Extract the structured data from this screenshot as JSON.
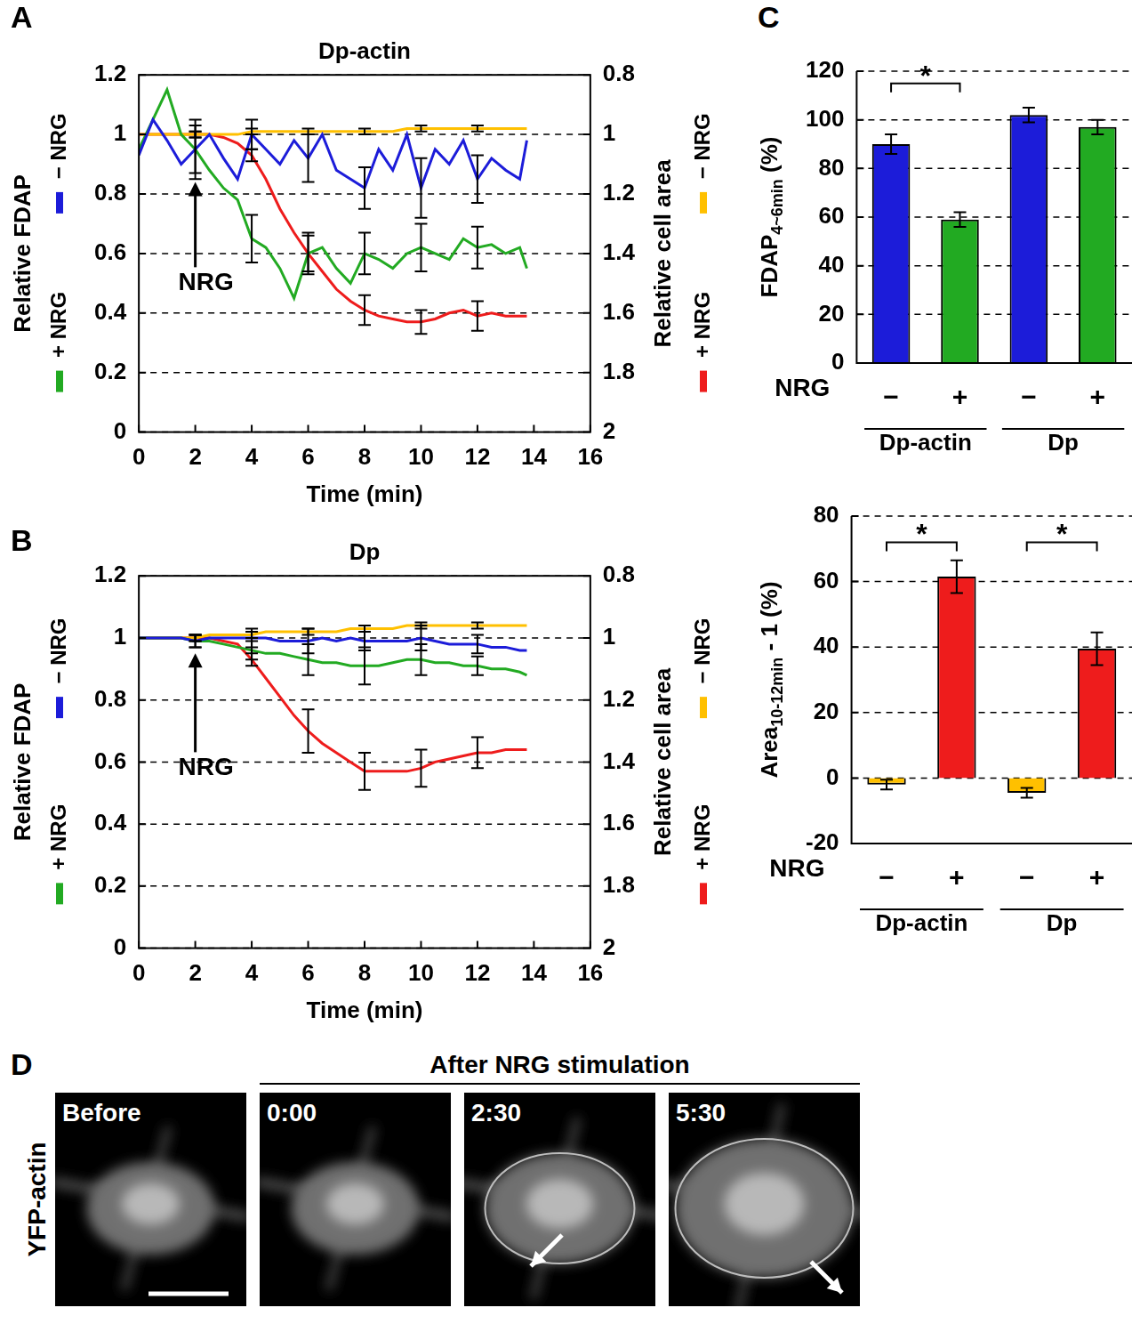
{
  "chart_data": [
    {
      "type": "line",
      "panel": "A",
      "title": "Dp-actin",
      "xlabel": "Time (min)",
      "ylabel": "Relative FDAP",
      "y2label": "Relative cell area",
      "x": [
        0,
        0.5,
        1,
        1.5,
        2,
        2.5,
        3,
        3.5,
        4,
        4.5,
        5,
        5.5,
        6,
        6.5,
        7,
        7.5,
        8,
        8.5,
        9,
        9.5,
        10,
        10.5,
        11,
        11.5,
        12,
        12.5,
        13,
        13.5,
        13.75
      ],
      "xlim": [
        0,
        16
      ],
      "xticks": [
        0,
        2,
        4,
        6,
        8,
        10,
        12,
        14,
        16
      ],
      "ylim": [
        0,
        1.2
      ],
      "yticks": [
        0,
        0.2,
        0.4,
        0.6,
        0.8,
        1,
        1.2
      ],
      "y2lim": [
        2,
        0.8
      ],
      "y2ticks": [
        0.8,
        1,
        1.2,
        1.4,
        1.6,
        1.8,
        2
      ],
      "grid": true,
      "series": [
        {
          "name": "− NRG",
          "color": "#1c1cd9",
          "axis": "y",
          "values": [
            0.93,
            1.05,
            0.98,
            0.9,
            0.95,
            1.0,
            0.92,
            0.85,
            1.0,
            0.95,
            0.9,
            0.98,
            0.92,
            1.0,
            0.88,
            0.85,
            0.82,
            0.95,
            0.88,
            1.0,
            0.82,
            0.95,
            0.9,
            0.98,
            0.85,
            0.92,
            0.88,
            0.85,
            0.98
          ],
          "errors": [
            null,
            null,
            null,
            null,
            0.08,
            null,
            null,
            null,
            0.05,
            null,
            null,
            null,
            0.08,
            null,
            null,
            null,
            0.07,
            null,
            null,
            null,
            0.1,
            null,
            null,
            null,
            0.08,
            null,
            null,
            null,
            null
          ]
        },
        {
          "name": "+ NRG",
          "color": "#22aa22",
          "axis": "y",
          "values": [
            0.95,
            1.05,
            1.15,
            1.0,
            0.95,
            0.88,
            0.82,
            0.78,
            0.65,
            0.62,
            0.55,
            0.45,
            0.6,
            0.62,
            0.55,
            0.5,
            0.6,
            0.58,
            0.55,
            0.6,
            0.62,
            0.6,
            0.58,
            0.65,
            0.62,
            0.63,
            0.6,
            0.62,
            0.55
          ],
          "errors": [
            null,
            null,
            null,
            null,
            0.1,
            null,
            null,
            null,
            0.08,
            null,
            null,
            null,
            0.07,
            null,
            null,
            null,
            0.07,
            null,
            null,
            null,
            0.08,
            null,
            null,
            null,
            0.07,
            null,
            null,
            null,
            null
          ]
        },
        {
          "name": "− NRG",
          "color": "#ffc000",
          "axis": "y2",
          "values": [
            1,
            1,
            1,
            1,
            1,
            1,
            1,
            1,
            0.99,
            0.99,
            0.99,
            0.99,
            0.99,
            0.99,
            0.99,
            0.99,
            0.99,
            0.99,
            0.99,
            0.98,
            0.98,
            0.98,
            0.98,
            0.98,
            0.98,
            0.98,
            0.98,
            0.98,
            0.98
          ],
          "errors": [
            null,
            null,
            null,
            null,
            0.01,
            null,
            null,
            null,
            0.01,
            null,
            null,
            null,
            0.01,
            null,
            null,
            null,
            0.01,
            null,
            null,
            null,
            0.01,
            null,
            null,
            null,
            0.01,
            null,
            null,
            null,
            null
          ]
        },
        {
          "name": "+ NRG",
          "color": "#ee1c1c",
          "axis": "y2",
          "values": [
            1,
            1,
            1,
            1,
            1,
            1,
            1.01,
            1.03,
            1.07,
            1.15,
            1.25,
            1.33,
            1.4,
            1.46,
            1.52,
            1.56,
            1.59,
            1.61,
            1.62,
            1.63,
            1.63,
            1.62,
            1.6,
            1.59,
            1.61,
            1.6,
            1.61,
            1.61,
            1.61
          ],
          "errors": [
            null,
            null,
            null,
            null,
            0.01,
            null,
            null,
            null,
            0.02,
            null,
            null,
            null,
            0.06,
            null,
            null,
            null,
            0.05,
            null,
            null,
            null,
            0.04,
            null,
            null,
            null,
            0.05,
            null,
            null,
            null,
            null
          ]
        }
      ],
      "annotations": [
        {
          "text": "NRG",
          "x": 2,
          "y": 0.5,
          "arrow_to": 0.84
        }
      ]
    },
    {
      "type": "line",
      "panel": "B",
      "title": "Dp",
      "xlabel": "Time (min)",
      "ylabel": "Relative FDAP",
      "y2label": "Relative cell area",
      "x": [
        0,
        0.5,
        1,
        1.5,
        2,
        2.5,
        3,
        3.5,
        4,
        4.5,
        5,
        5.5,
        6,
        6.5,
        7,
        7.5,
        8,
        8.5,
        9,
        9.5,
        10,
        10.5,
        11,
        11.5,
        12,
        12.5,
        13,
        13.5,
        13.75
      ],
      "xlim": [
        0,
        16
      ],
      "xticks": [
        0,
        2,
        4,
        6,
        8,
        10,
        12,
        14,
        16
      ],
      "ylim": [
        0,
        1.2
      ],
      "yticks": [
        0,
        0.2,
        0.4,
        0.6,
        0.8,
        1,
        1.2
      ],
      "y2lim": [
        2,
        0.8
      ],
      "y2ticks": [
        0.8,
        1,
        1.2,
        1.4,
        1.6,
        1.8,
        2
      ],
      "grid": true,
      "series": [
        {
          "name": "− NRG",
          "color": "#1c1cd9",
          "axis": "y",
          "values": [
            1,
            1,
            1,
            1,
            0.99,
            1,
            1,
            1,
            1,
            1,
            0.99,
            0.99,
            0.99,
            1,
            0.99,
            1,
            0.99,
            0.99,
            0.99,
            0.99,
            1,
            0.99,
            0.98,
            0.98,
            0.98,
            0.97,
            0.97,
            0.96,
            0.96
          ],
          "errors": [
            null,
            null,
            null,
            null,
            0.02,
            null,
            null,
            null,
            0.03,
            null,
            null,
            null,
            0.04,
            null,
            null,
            null,
            0.03,
            null,
            null,
            null,
            0.04,
            null,
            null,
            null,
            0.03,
            null,
            null,
            null,
            null
          ]
        },
        {
          "name": "+ NRG",
          "color": "#22aa22",
          "axis": "y",
          "values": [
            1,
            1,
            1,
            1,
            0.99,
            0.99,
            0.98,
            0.97,
            0.96,
            0.95,
            0.95,
            0.94,
            0.93,
            0.92,
            0.92,
            0.91,
            0.91,
            0.91,
            0.92,
            0.93,
            0.93,
            0.92,
            0.92,
            0.91,
            0.91,
            0.9,
            0.9,
            0.89,
            0.88
          ],
          "errors": [
            null,
            null,
            null,
            null,
            0.02,
            null,
            null,
            null,
            0.03,
            null,
            null,
            null,
            0.05,
            null,
            null,
            null,
            0.06,
            null,
            null,
            null,
            0.05,
            null,
            null,
            null,
            0.03,
            null,
            null,
            null,
            null
          ]
        },
        {
          "name": "− NRG",
          "color": "#ffc000",
          "axis": "y2",
          "values": [
            1,
            1,
            1,
            1,
            1,
            0.99,
            0.99,
            0.99,
            0.99,
            0.98,
            0.98,
            0.98,
            0.98,
            0.98,
            0.98,
            0.97,
            0.97,
            0.97,
            0.97,
            0.96,
            0.96,
            0.96,
            0.96,
            0.96,
            0.96,
            0.96,
            0.96,
            0.96,
            0.96
          ],
          "errors": [
            null,
            null,
            null,
            null,
            0.01,
            null,
            null,
            null,
            0.01,
            null,
            null,
            null,
            0.01,
            null,
            null,
            null,
            0.01,
            null,
            null,
            null,
            0.01,
            null,
            null,
            null,
            0.01,
            null,
            null,
            null,
            null
          ]
        },
        {
          "name": "+ NRG",
          "color": "#ee1c1c",
          "axis": "y2",
          "values": [
            1,
            1,
            1,
            1,
            1,
            1,
            1.01,
            1.02,
            1.07,
            1.13,
            1.19,
            1.25,
            1.3,
            1.34,
            1.37,
            1.4,
            1.43,
            1.43,
            1.43,
            1.43,
            1.42,
            1.4,
            1.39,
            1.38,
            1.37,
            1.37,
            1.36,
            1.36,
            1.36
          ],
          "errors": [
            null,
            null,
            null,
            null,
            0.01,
            null,
            null,
            null,
            0.02,
            null,
            null,
            null,
            0.07,
            null,
            null,
            null,
            0.06,
            null,
            null,
            null,
            0.06,
            null,
            null,
            null,
            0.05,
            null,
            null,
            null,
            null
          ]
        }
      ],
      "annotations": [
        {
          "text": "NRG",
          "x": 2,
          "y": 0.58,
          "arrow_to": 0.95
        }
      ]
    },
    {
      "type": "bar",
      "panel": "C",
      "ylabel": [
        "FDAP",
        "4~6min",
        " (%)"
      ],
      "xlabel": "NRG",
      "categories": [
        "−",
        "+",
        "−",
        "+"
      ],
      "values": [
        90,
        59,
        102,
        97
      ],
      "errors": [
        4,
        3,
        3,
        3
      ],
      "colors": [
        "#1c1cd9",
        "#22aa22",
        "#1c1cd9",
        "#22aa22"
      ],
      "ylim": [
        0,
        120
      ],
      "yticks": [
        0,
        20,
        40,
        60,
        80,
        100,
        120
      ],
      "grid": true,
      "groups": [
        {
          "label": "Dp-actin",
          "from": 0,
          "to": 1
        },
        {
          "label": "Dp",
          "from": 2,
          "to": 3
        }
      ],
      "significance": [
        {
          "from": 0,
          "to": 1,
          "y": 115,
          "label": "*"
        }
      ]
    },
    {
      "type": "bar",
      "ylabel": [
        "Area",
        "10-12min",
        " - 1 (%)"
      ],
      "xlabel": "NRG",
      "categories": [
        "−",
        "+",
        "−",
        "+"
      ],
      "values": [
        -2,
        61.5,
        -4.5,
        39.5
      ],
      "errors": [
        1.5,
        5,
        1.5,
        5
      ],
      "colors": [
        "#ffc000",
        "#ee1c1c",
        "#ffc000",
        "#ee1c1c"
      ],
      "ylim": [
        -20,
        80
      ],
      "yticks": [
        -20,
        0,
        20,
        40,
        60,
        80
      ],
      "grid": true,
      "groups": [
        {
          "label": "Dp-actin",
          "from": 0,
          "to": 1
        },
        {
          "label": "Dp",
          "from": 2,
          "to": 3
        }
      ],
      "significance": [
        {
          "from": 0,
          "to": 1,
          "y": 72,
          "label": "*"
        },
        {
          "from": 2,
          "to": 3,
          "y": 72,
          "label": "*"
        }
      ]
    }
  ],
  "image_panel": {
    "panel": "D",
    "row_label": "YFP-actin",
    "header": "After NRG stimulation",
    "frames": [
      {
        "label": "Before",
        "arrow": false,
        "scale_bar": true
      },
      {
        "label": "0:00",
        "arrow": false,
        "scale_bar": false
      },
      {
        "label": "2:30",
        "arrow": true,
        "scale_bar": false
      },
      {
        "label": "5:30",
        "arrow": true,
        "scale_bar": false
      }
    ]
  }
}
